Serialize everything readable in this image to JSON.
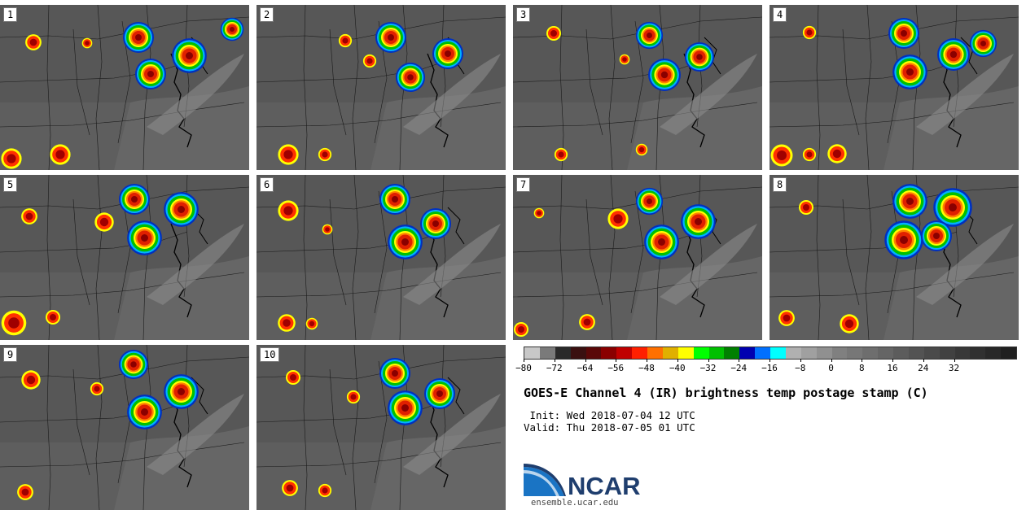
{
  "panels": [
    {
      "label": "1"
    },
    {
      "label": "2"
    },
    {
      "label": "3"
    },
    {
      "label": "4"
    },
    {
      "label": "5"
    },
    {
      "label": "6"
    },
    {
      "label": "7"
    },
    {
      "label": "8"
    },
    {
      "label": "9"
    },
    {
      "label": "10"
    }
  ],
  "colorbar": {
    "colors": [
      "#c8c8c8",
      "#7a7a7a",
      "#2a2a2a",
      "#3a1010",
      "#5a0808",
      "#8a0000",
      "#c00000",
      "#ff2000",
      "#ff7000",
      "#e0b000",
      "#ffff00",
      "#00ff00",
      "#00c000",
      "#008000",
      "#0000b0",
      "#0070ff",
      "#00ffff",
      "#b0b0b0",
      "#a0a0a0",
      "#909090",
      "#808080",
      "#777777",
      "#6e6e6e",
      "#656565",
      "#5c5c5c",
      "#535353",
      "#4a4a4a",
      "#414141",
      "#383838",
      "#303030",
      "#282828",
      "#202020"
    ],
    "ticks": [
      "−80",
      "−72",
      "−64",
      "−56",
      "−48",
      "−40",
      "−32",
      "−24",
      "−16",
      "−8",
      "0",
      "8",
      "16",
      "24",
      "32"
    ]
  },
  "title": "GOES-E Channel 4 (IR) brightness temp postage stamp (C)",
  "init": " Init: Wed 2018-07-04 12 UTC",
  "valid": "Valid: Thu 2018-07-05 01 UTC",
  "logo_text": "NCAR",
  "url": "ensemble.ucar.edu"
}
